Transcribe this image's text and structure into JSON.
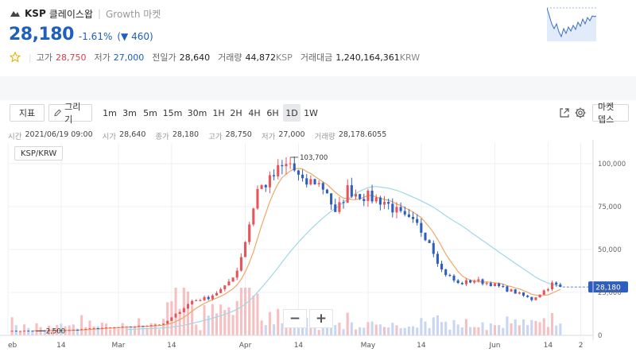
{
  "header": {
    "symbol": "KSP",
    "name": "클레이스왑",
    "separator": "|",
    "market_type": "Growth 마켓",
    "price": "28,180",
    "change_pct": "-1.61%",
    "change_abs": "(▼ 460)",
    "stats": [
      {
        "label": "고가",
        "value": "28,750",
        "tone": "up"
      },
      {
        "label": "저가",
        "value": "27,000",
        "tone": "down"
      },
      {
        "label": "전일가",
        "value": "28,640",
        "tone": "plain"
      },
      {
        "label": "거래량",
        "value": "44,872",
        "unit": "KSP",
        "tone": "plain"
      },
      {
        "label": "거래대금",
        "value": "1,240,164,361",
        "unit": "KRW",
        "tone": "plain"
      }
    ],
    "icons": {
      "logo": "ksp-logo-icon",
      "favorite": "star-icon",
      "sparkline": "mini-price-chart"
    }
  },
  "toolbar": {
    "indicator_label": "지표",
    "draw_label": "그리기",
    "periods": [
      "1m",
      "3m",
      "5m",
      "15m",
      "30m",
      "1H",
      "2H",
      "4H",
      "6H",
      "1D",
      "1W"
    ],
    "active_period": "1D",
    "market_depth_label": "마켓 뎁스",
    "icons": [
      "expand-icon",
      "gear-icon",
      "pencil-icon",
      "chevron-down-icon"
    ]
  },
  "info": [
    {
      "label": "시간",
      "value": "2021/06/19 09:00"
    },
    {
      "label": "시가",
      "value": "28,640"
    },
    {
      "label": "종가",
      "value": "28,180"
    },
    {
      "label": "고가",
      "value": "28,750"
    },
    {
      "label": "저가",
      "value": "27,000"
    },
    {
      "label": "거래량",
      "value": "28,178.6055"
    }
  ],
  "chart": {
    "pair_label": "KSP/KRW",
    "zoom_out_label": "−",
    "zoom_in_label": "+",
    "colors": {
      "up": "#e8545b",
      "down": "#2f5fbd",
      "ma_short": "#f0a766",
      "ma_long": "#9fd8e6",
      "vol_up": "#f6c0c3",
      "vol_down": "#c9d6f2",
      "last_price": "#2f5fbd"
    }
  },
  "chart_data": {
    "type": "candlestick",
    "x_ticks": [
      {
        "label": "eb",
        "day": 0
      },
      {
        "label": "14",
        "day": 13
      },
      {
        "label": "Mar",
        "day": 27
      },
      {
        "label": "14",
        "day": 40
      },
      {
        "label": "Apr",
        "day": 58
      },
      {
        "label": "14",
        "day": 71
      },
      {
        "label": "May",
        "day": 88
      },
      {
        "label": "14",
        "day": 101
      },
      {
        "label": "Jun",
        "day": 119
      },
      {
        "label": "14",
        "day": 132
      },
      {
        "label": "2",
        "day": 140
      }
    ],
    "y_ticks": [
      {
        "label": "0",
        "value": 0
      },
      {
        "label": "25,000",
        "value": 25000
      },
      {
        "label": "50,000",
        "value": 50000
      },
      {
        "label": "75,000",
        "value": 75000
      },
      {
        "label": "100,000",
        "value": 100000
      }
    ],
    "ylim": [
      0,
      112000
    ],
    "xlim": [
      0,
      143
    ],
    "high_label": {
      "text": "103,700",
      "value": 103700,
      "day": 69
    },
    "low_label": {
      "text": "2,500",
      "value": 2500,
      "day": 5
    },
    "last_price_label": {
      "text": "28,180",
      "value": 28180
    },
    "anchors": [
      [
        0,
        2500
      ],
      [
        15,
        3000
      ],
      [
        22,
        4200
      ],
      [
        30,
        5000
      ],
      [
        38,
        6500
      ],
      [
        42,
        14000
      ],
      [
        45,
        20000
      ],
      [
        49,
        22000
      ],
      [
        53,
        28000
      ],
      [
        56,
        38000
      ],
      [
        58,
        55000
      ],
      [
        61,
        85000
      ],
      [
        64,
        90000
      ],
      [
        66,
        96000
      ],
      [
        69,
        100000
      ],
      [
        72,
        88000
      ],
      [
        75,
        90000
      ],
      [
        78,
        84000
      ],
      [
        80,
        70000
      ],
      [
        83,
        85000
      ],
      [
        86,
        82000
      ],
      [
        92,
        78000
      ],
      [
        97,
        68000
      ],
      [
        100,
        64000
      ],
      [
        103,
        55000
      ],
      [
        106,
        38000
      ],
      [
        110,
        30000
      ],
      [
        114,
        32000
      ],
      [
        118,
        30000
      ],
      [
        124,
        25000
      ],
      [
        128,
        21000
      ],
      [
        131,
        26000
      ],
      [
        133,
        30000
      ],
      [
        135,
        28180
      ]
    ]
  }
}
